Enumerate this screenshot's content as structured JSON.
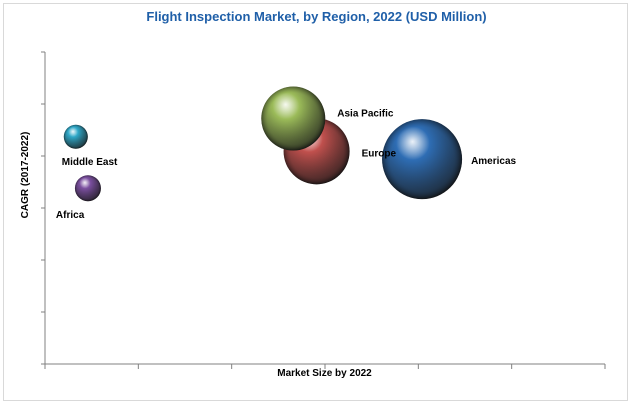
{
  "chart_data": {
    "type": "scatter",
    "title": "Flight Inspection Market, by Region, 2022 (USD Million)",
    "xlabel": "Market Size by 2022",
    "ylabel": "CAGR (2017-2022)",
    "xlim": [
      0,
      600
    ],
    "ylim": [
      0,
      600
    ],
    "grid": false,
    "legend": "none",
    "points": [
      {
        "label": "Middle East",
        "x": 33,
        "y": 437,
        "size": 12,
        "color": "#2fa8c8",
        "label_pos": "below"
      },
      {
        "label": "Africa",
        "x": 46,
        "y": 338,
        "size": 13,
        "color": "#7b4fa0",
        "label_pos": "below-left"
      },
      {
        "label": "Europe",
        "x": 291,
        "y": 409,
        "size": 33,
        "color": "#c0504d",
        "label_pos": "right"
      },
      {
        "label": "Asia Pacific",
        "x": 266,
        "y": 472,
        "size": 32,
        "color": "#9bbb59",
        "label_pos": "right"
      },
      {
        "label": "Americas",
        "x": 404,
        "y": 394,
        "size": 40,
        "color": "#2e6db4",
        "label_pos": "right"
      }
    ]
  }
}
